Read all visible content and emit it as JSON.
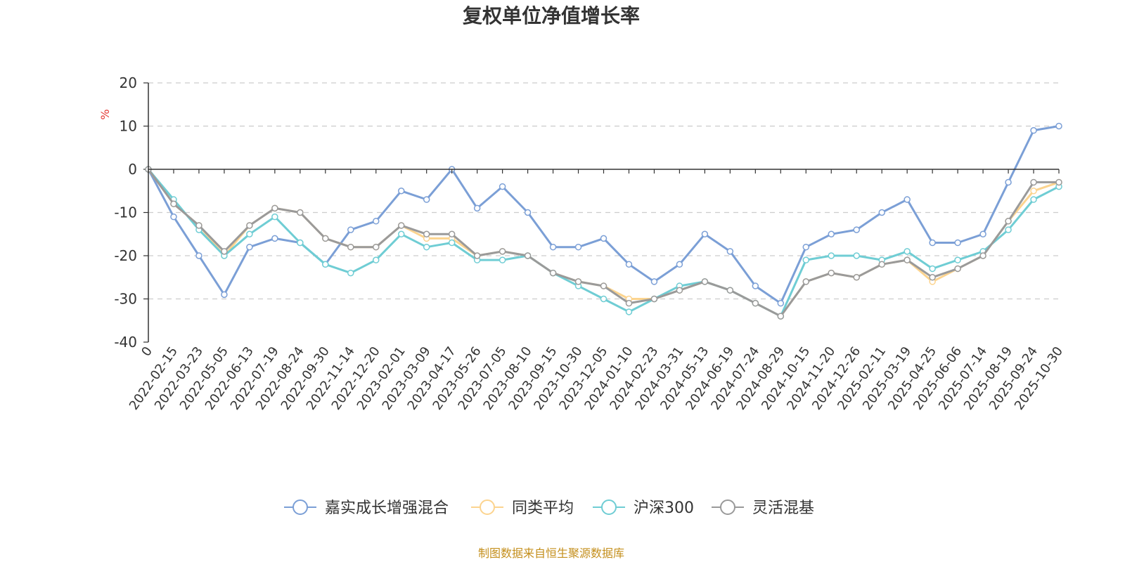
{
  "chart_data": {
    "type": "line",
    "title": "复权单位净值增长率",
    "ylabel": "%",
    "xlabel": "",
    "ylim": [
      -40,
      20
    ],
    "yticks": [
      20,
      10,
      0,
      -10,
      -20,
      -30,
      -40
    ],
    "grid": true,
    "legend_position": "bottom",
    "source_note": "制图数据来自恒生聚源数据库",
    "categories": [
      "0",
      "2022-02-15",
      "2022-03-23",
      "2022-05-05",
      "2022-06-13",
      "2022-07-19",
      "2022-08-24",
      "2022-09-30",
      "2022-11-14",
      "2022-12-20",
      "2023-02-01",
      "2023-03-09",
      "2023-04-17",
      "2023-05-26",
      "2023-07-05",
      "2023-08-10",
      "2023-09-15",
      "2023-10-30",
      "2023-12-05",
      "2024-01-10",
      "2024-02-23",
      "2024-03-31",
      "2024-05-13",
      "2024-06-19",
      "2024-07-24",
      "2024-08-29",
      "2024-10-15",
      "2024-11-20",
      "2024-12-26",
      "2025-02-11",
      "2025-03-19",
      "2025-04-25",
      "2025-06-06",
      "2025-07-14",
      "2025-08-19",
      "2025-09-24",
      "2025-10-30"
    ],
    "series": [
      {
        "name": "嘉实成长增强混合",
        "color": "#7b9fd6",
        "values": [
          0,
          -11,
          -20,
          -29,
          -18,
          -16,
          -17,
          -22,
          -14,
          -12,
          -5,
          -7,
          0,
          -9,
          -4,
          -10,
          -18,
          -18,
          -16,
          -22,
          -26,
          -22,
          -15,
          -19,
          -27,
          -31,
          -18,
          -15,
          -14,
          -10,
          -7,
          -17,
          -17,
          -15,
          -3,
          9,
          10
        ]
      },
      {
        "name": "同类平均",
        "color": "#fcd48f",
        "values": [
          0,
          -8,
          -13,
          -20,
          -13,
          -9,
          -10,
          -16,
          -18,
          -18,
          -13,
          -16,
          -16,
          -20,
          -19,
          -20,
          -24,
          -26,
          -27,
          -30,
          -30,
          -28,
          -26,
          -28,
          -31,
          -34,
          -26,
          -24,
          -25,
          -22,
          -21,
          -26,
          -23,
          -20,
          -12,
          -5,
          -3
        ]
      },
      {
        "name": "沪深300",
        "color": "#6fcdd4",
        "values": [
          0,
          -7,
          -14,
          -20,
          -15,
          -11,
          -17,
          -22,
          -24,
          -21,
          -15,
          -18,
          -17,
          -21,
          -21,
          -20,
          -24,
          -27,
          -30,
          -33,
          -30,
          -27,
          -26,
          -28,
          -31,
          -34,
          -21,
          -20,
          -20,
          -21,
          -19,
          -23,
          -21,
          -19,
          -14,
          -7,
          -4
        ]
      },
      {
        "name": "灵活混基",
        "color": "#9a9a9a",
        "values": [
          0,
          -8,
          -13,
          -19,
          -13,
          -9,
          -10,
          -16,
          -18,
          -18,
          -13,
          -15,
          -15,
          -20,
          -19,
          -20,
          -24,
          -26,
          -27,
          -31,
          -30,
          -28,
          -26,
          -28,
          -31,
          -34,
          -26,
          -24,
          -25,
          -22,
          -21,
          -25,
          -23,
          -20,
          -12,
          -3,
          -3
        ]
      }
    ]
  }
}
